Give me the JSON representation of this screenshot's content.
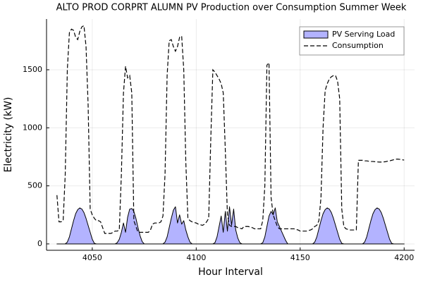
{
  "chart_data": {
    "type": "line",
    "title": "ALTO PROD CORPRT ALUMN PV Production over Consumption Summer Week",
    "x_label": "Hour Interval",
    "y_label": "Electricity (kW)",
    "xlim": [
      4028,
      4205
    ],
    "ylim": [
      -55,
      1937
    ],
    "xticks": [
      4050,
      4100,
      4150,
      4200
    ],
    "yticks": [
      0,
      500,
      1000,
      1500
    ],
    "grid": true,
    "legend": "top-right",
    "x": [
      4033,
      4034,
      4035,
      4036,
      4037,
      4038,
      4039,
      4040,
      4041,
      4042,
      4043,
      4044,
      4045,
      4046,
      4047,
      4048,
      4049,
      4050,
      4051,
      4052,
      4053,
      4054,
      4055,
      4056,
      4057,
      4058,
      4059,
      4060,
      4061,
      4062,
      4063,
      4064,
      4065,
      4066,
      4067,
      4068,
      4069,
      4070,
      4071,
      4072,
      4073,
      4074,
      4075,
      4076,
      4077,
      4078,
      4079,
      4080,
      4081,
      4082,
      4083,
      4084,
      4085,
      4086,
      4087,
      4088,
      4089,
      4090,
      4091,
      4092,
      4093,
      4094,
      4095,
      4096,
      4097,
      4098,
      4099,
      4100,
      4101,
      4102,
      4103,
      4104,
      4105,
      4106,
      4107,
      4108,
      4109,
      4110,
      4111,
      4112,
      4113,
      4114,
      4115,
      4116,
      4117,
      4118,
      4119,
      4120,
      4121,
      4122,
      4123,
      4124,
      4125,
      4126,
      4127,
      4128,
      4129,
      4130,
      4131,
      4132,
      4133,
      4134,
      4135,
      4136,
      4137,
      4138,
      4139,
      4140,
      4141,
      4142,
      4143,
      4144,
      4145,
      4146,
      4147,
      4148,
      4149,
      4150,
      4151,
      4152,
      4153,
      4154,
      4155,
      4156,
      4157,
      4158,
      4159,
      4160,
      4161,
      4162,
      4163,
      4164,
      4165,
      4166,
      4167,
      4168,
      4169,
      4170,
      4171,
      4172,
      4173,
      4174,
      4175,
      4176,
      4177,
      4178,
      4179,
      4180,
      4181,
      4182,
      4183,
      4184,
      4185,
      4186,
      4187,
      4188,
      4189,
      4190,
      4191,
      4192,
      4193,
      4194,
      4195,
      4196,
      4197,
      4198,
      4199,
      4200
    ],
    "series": [
      {
        "name": "PV Serving Load",
        "kind": "area",
        "color": "#b3b3ff",
        "line_color": "#000000",
        "values": [
          0,
          0,
          0,
          0,
          0,
          15,
          60,
          130,
          200,
          260,
          295,
          310,
          300,
          270,
          220,
          160,
          100,
          40,
          5,
          0,
          0,
          0,
          0,
          0,
          0,
          0,
          0,
          0,
          0,
          10,
          40,
          100,
          180,
          100,
          230,
          300,
          305,
          280,
          220,
          140,
          70,
          20,
          0,
          0,
          0,
          0,
          0,
          0,
          0,
          0,
          0,
          0,
          15,
          60,
          140,
          220,
          290,
          320,
          180,
          250,
          170,
          200,
          120,
          60,
          15,
          0,
          0,
          0,
          0,
          0,
          0,
          0,
          0,
          0,
          0,
          0,
          10,
          60,
          150,
          240,
          100,
          280,
          110,
          320,
          160,
          300,
          120,
          50,
          10,
          0,
          0,
          0,
          0,
          0,
          0,
          0,
          0,
          0,
          0,
          10,
          60,
          150,
          240,
          280,
          250,
          310,
          190,
          150,
          110,
          70,
          30,
          0,
          0,
          0,
          0,
          0,
          0,
          0,
          0,
          0,
          0,
          0,
          0,
          0,
          15,
          60,
          130,
          200,
          260,
          295,
          310,
          300,
          270,
          220,
          160,
          100,
          40,
          5,
          0,
          0,
          0,
          0,
          0,
          0,
          0,
          0,
          0,
          0,
          15,
          60,
          130,
          200,
          260,
          295,
          310,
          300,
          270,
          220,
          160,
          100,
          40,
          5,
          0,
          0,
          0,
          0,
          0,
          0
        ]
      },
      {
        "name": "Consumption",
        "kind": "dashed",
        "color": "#000000",
        "values": [
          420,
          190,
          190,
          200,
          600,
          1500,
          1820,
          1850,
          1840,
          1780,
          1760,
          1830,
          1870,
          1880,
          1700,
          1200,
          300,
          250,
          220,
          200,
          200,
          190,
          140,
          90,
          90,
          90,
          90,
          100,
          110,
          110,
          120,
          600,
          1300,
          1530,
          1430,
          1450,
          1300,
          200,
          150,
          100,
          100,
          100,
          100,
          100,
          100,
          120,
          170,
          180,
          180,
          180,
          190,
          240,
          600,
          1450,
          1750,
          1760,
          1700,
          1660,
          1700,
          1780,
          1790,
          1500,
          700,
          220,
          200,
          190,
          185,
          180,
          170,
          165,
          160,
          170,
          190,
          220,
          900,
          1500,
          1480,
          1450,
          1420,
          1380,
          1300,
          800,
          250,
          160,
          150,
          150,
          150,
          140,
          135,
          130,
          150,
          150,
          150,
          145,
          140,
          130,
          130,
          130,
          130,
          200,
          500,
          1540,
          1560,
          400,
          250,
          200,
          150,
          130,
          130,
          130,
          130,
          130,
          130,
          130,
          130,
          125,
          120,
          110,
          110,
          110,
          110,
          115,
          120,
          130,
          150,
          160,
          200,
          400,
          1000,
          1320,
          1380,
          1420,
          1440,
          1450,
          1450,
          1400,
          1250,
          300,
          150,
          130,
          125,
          120,
          120,
          120,
          120,
          720,
          720,
          720,
          715,
          715,
          712,
          710,
          710,
          708,
          706,
          705,
          705,
          706,
          708,
          712,
          715,
          720,
          725,
          730,
          730,
          728,
          725,
          722
        ]
      }
    ]
  }
}
